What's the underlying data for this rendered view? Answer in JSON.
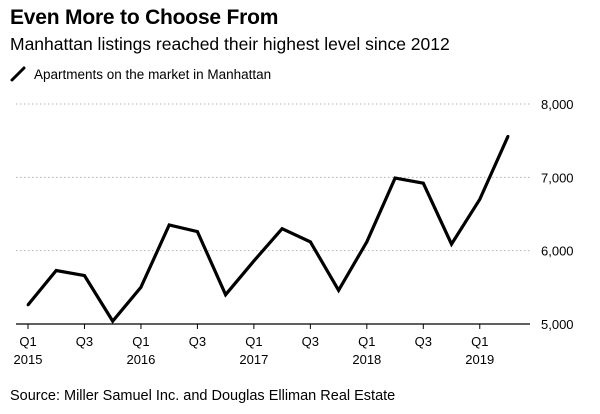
{
  "header": {
    "title": "Even More to Choose From",
    "subtitle": "Manhattan listings reached their highest level since 2012"
  },
  "legend": {
    "label": "Apartments on the market in Manhattan",
    "icon": "line-swatch-icon"
  },
  "footer": {
    "source": "Source: Miller Samuel Inc. and Douglas Elliman Real Estate"
  },
  "chart_data": {
    "type": "line",
    "title": "Even More to Choose From",
    "subtitle": "Manhattan listings reached their highest level since 2012",
    "xlabel": "",
    "ylabel": "",
    "ylim": [
      5000,
      8000
    ],
    "yticks": [
      {
        "value": 5000,
        "label": "5,000"
      },
      {
        "value": 6000,
        "label": "6,000"
      },
      {
        "value": 7000,
        "label": "7,000"
      },
      {
        "value": 8000,
        "label": "8,000"
      }
    ],
    "categories": [
      "Q1 2015",
      "Q2 2015",
      "Q3 2015",
      "Q4 2015",
      "Q1 2016",
      "Q2 2016",
      "Q3 2016",
      "Q4 2016",
      "Q1 2017",
      "Q2 2017",
      "Q3 2017",
      "Q4 2017",
      "Q1 2018",
      "Q2 2018",
      "Q3 2018",
      "Q4 2018",
      "Q1 2019",
      "Q2 2019"
    ],
    "xtick_labels": [
      {
        "index": 0,
        "quarter": "Q1",
        "year": "2015"
      },
      {
        "index": 2,
        "quarter": "Q3",
        "year": ""
      },
      {
        "index": 4,
        "quarter": "Q1",
        "year": "2016"
      },
      {
        "index": 6,
        "quarter": "Q3",
        "year": ""
      },
      {
        "index": 8,
        "quarter": "Q1",
        "year": "2017"
      },
      {
        "index": 10,
        "quarter": "Q3",
        "year": ""
      },
      {
        "index": 12,
        "quarter": "Q1",
        "year": "2018"
      },
      {
        "index": 14,
        "quarter": "Q3",
        "year": ""
      },
      {
        "index": 16,
        "quarter": "Q1",
        "year": "2019"
      }
    ],
    "series": [
      {
        "name": "Apartments on the market in Manhattan",
        "color": "#000000",
        "values": [
          5260,
          5730,
          5660,
          5040,
          5500,
          6350,
          6260,
          5400,
          5860,
          6300,
          6120,
          5460,
          6120,
          6990,
          6920,
          6090,
          6700,
          7560
        ]
      }
    ],
    "grid": true,
    "y_axis_position": "right",
    "legend_position": "top-left"
  }
}
